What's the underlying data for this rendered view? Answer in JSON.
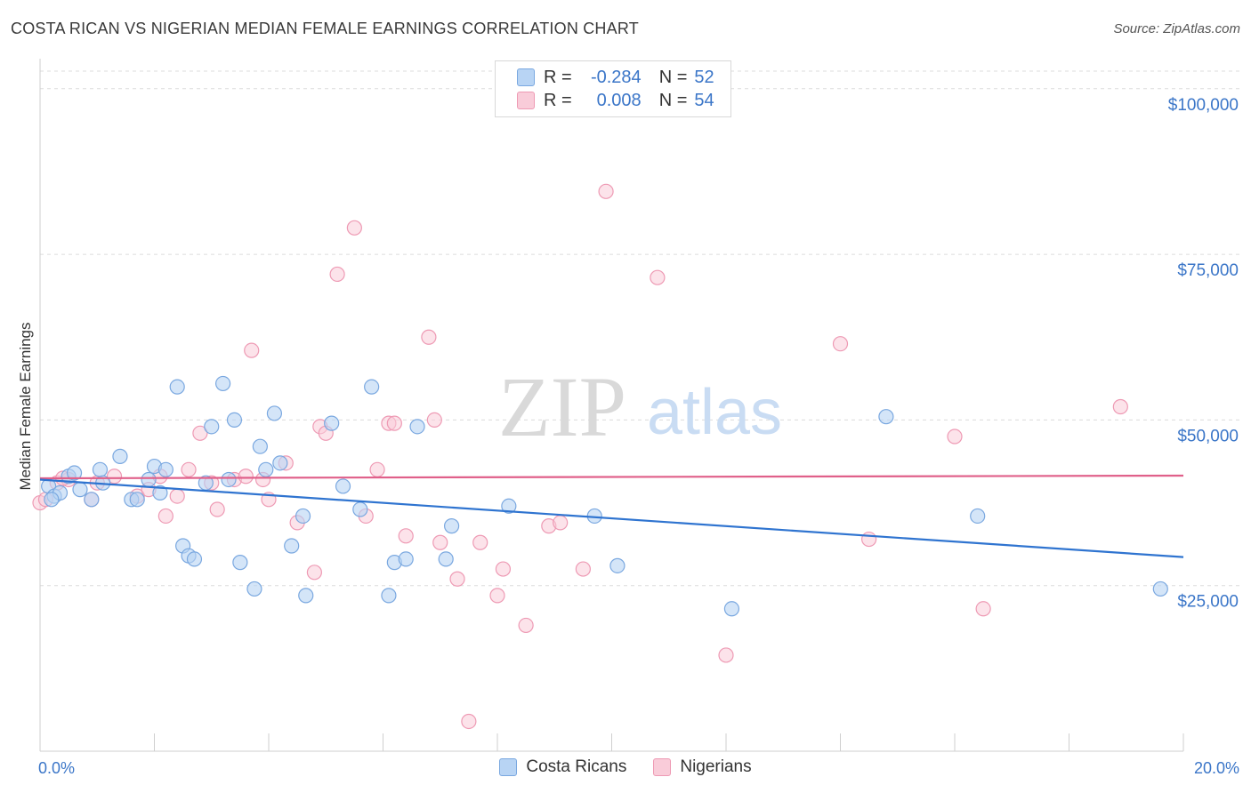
{
  "title": "COSTA RICAN VS NIGERIAN MEDIAN FEMALE EARNINGS CORRELATION CHART",
  "source": "Source: ZipAtlas.com",
  "watermark": {
    "zip": "ZIP",
    "atlas": "atlas"
  },
  "legend": {
    "r_label": "R =",
    "n_label": "N =",
    "rows": [
      {
        "r": "-0.284",
        "n": "52"
      },
      {
        "r": "0.008",
        "n": "54"
      }
    ]
  },
  "colors": {
    "costa_fill": "#b8d4f4",
    "costa_stroke": "#7aa8e0",
    "costa_line": "#2f74d0",
    "nigeria_fill": "#f9ccd9",
    "nigeria_stroke": "#ee9ab4",
    "nigeria_line": "#e0608a",
    "tick_label": "#3b76c8",
    "grid": "#dcdcdc"
  },
  "chart_data": {
    "type": "scatter",
    "title": "COSTA RICAN VS NIGERIAN MEDIAN FEMALE EARNINGS CORRELATION CHART",
    "xlabel": "",
    "ylabel": "Median Female Earnings",
    "xlim": [
      0,
      20
    ],
    "ylim": [
      0,
      104000
    ],
    "x_tick_labels": [
      "0.0%",
      "20.0%"
    ],
    "y_ticks": [
      25000,
      50000,
      75000,
      100000
    ],
    "y_tick_labels": [
      "$25,000",
      "$50,000",
      "$75,000",
      "$100,000"
    ],
    "grid": true,
    "legend_placement": "top-center",
    "series": [
      {
        "name": "Costa Ricans",
        "r": -0.284,
        "n": 52,
        "trend": {
          "x": [
            0,
            20
          ],
          "y": [
            41000,
            29300
          ]
        },
        "points": [
          [
            0.15,
            40000
          ],
          [
            0.25,
            38500
          ],
          [
            0.35,
            39000
          ],
          [
            0.5,
            41500
          ],
          [
            0.7,
            39500
          ],
          [
            0.9,
            38000
          ],
          [
            0.6,
            42000
          ],
          [
            1.05,
            42500
          ],
          [
            1.1,
            40500
          ],
          [
            1.4,
            44500
          ],
          [
            1.6,
            38000
          ],
          [
            1.7,
            38000
          ],
          [
            1.9,
            41000
          ],
          [
            2.0,
            43000
          ],
          [
            2.1,
            39000
          ],
          [
            2.2,
            42500
          ],
          [
            2.4,
            55000
          ],
          [
            2.5,
            31000
          ],
          [
            2.6,
            29500
          ],
          [
            2.7,
            29000
          ],
          [
            2.9,
            40500
          ],
          [
            3.0,
            49000
          ],
          [
            3.2,
            55500
          ],
          [
            3.4,
            50000
          ],
          [
            3.3,
            41000
          ],
          [
            3.5,
            28500
          ],
          [
            3.75,
            24500
          ],
          [
            3.85,
            46000
          ],
          [
            3.95,
            42500
          ],
          [
            4.1,
            51000
          ],
          [
            4.2,
            43500
          ],
          [
            4.4,
            31000
          ],
          [
            4.6,
            35500
          ],
          [
            4.65,
            23500
          ],
          [
            5.1,
            49500
          ],
          [
            5.3,
            40000
          ],
          [
            5.6,
            36500
          ],
          [
            5.8,
            55000
          ],
          [
            6.1,
            23500
          ],
          [
            6.2,
            28500
          ],
          [
            6.4,
            29000
          ],
          [
            6.6,
            49000
          ],
          [
            7.1,
            29000
          ],
          [
            7.2,
            34000
          ],
          [
            8.2,
            37000
          ],
          [
            9.7,
            35500
          ],
          [
            10.1,
            28000
          ],
          [
            12.1,
            21500
          ],
          [
            14.8,
            50500
          ],
          [
            16.4,
            35500
          ],
          [
            19.6,
            24500
          ],
          [
            0.2,
            38000
          ]
        ]
      },
      {
        "name": "Nigerians",
        "r": 0.008,
        "n": 54,
        "trend": {
          "x": [
            0,
            20
          ],
          "y": [
            41200,
            41600
          ]
        },
        "points": [
          [
            0.0,
            37500
          ],
          [
            0.1,
            38000
          ],
          [
            0.3,
            40500
          ],
          [
            0.5,
            41000
          ],
          [
            0.9,
            38000
          ],
          [
            1.0,
            40500
          ],
          [
            1.3,
            41500
          ],
          [
            1.7,
            38500
          ],
          [
            1.9,
            39500
          ],
          [
            2.1,
            41500
          ],
          [
            2.2,
            35500
          ],
          [
            2.4,
            38500
          ],
          [
            2.6,
            42500
          ],
          [
            2.8,
            48000
          ],
          [
            3.0,
            40500
          ],
          [
            3.1,
            36500
          ],
          [
            3.4,
            41000
          ],
          [
            3.7,
            60500
          ],
          [
            3.9,
            41000
          ],
          [
            4.0,
            38000
          ],
          [
            4.3,
            43500
          ],
          [
            4.5,
            34500
          ],
          [
            4.8,
            27000
          ],
          [
            4.9,
            49000
          ],
          [
            5.0,
            48000
          ],
          [
            5.2,
            72000
          ],
          [
            5.5,
            79000
          ],
          [
            5.7,
            35500
          ],
          [
            5.9,
            42500
          ],
          [
            6.1,
            49500
          ],
          [
            6.4,
            32500
          ],
          [
            6.8,
            62500
          ],
          [
            6.9,
            50000
          ],
          [
            7.0,
            31500
          ],
          [
            7.3,
            26000
          ],
          [
            7.5,
            4500
          ],
          [
            7.7,
            31500
          ],
          [
            8.0,
            23500
          ],
          [
            8.1,
            27500
          ],
          [
            8.5,
            19000
          ],
          [
            8.9,
            34000
          ],
          [
            9.1,
            34500
          ],
          [
            9.5,
            27500
          ],
          [
            9.9,
            84500
          ],
          [
            10.8,
            71500
          ],
          [
            12.0,
            14500
          ],
          [
            14.0,
            61500
          ],
          [
            14.5,
            32000
          ],
          [
            16.0,
            47500
          ],
          [
            16.5,
            21500
          ],
          [
            18.9,
            52000
          ],
          [
            6.2,
            49500
          ],
          [
            3.6,
            41500
          ],
          [
            0.4,
            41200
          ]
        ]
      }
    ]
  }
}
